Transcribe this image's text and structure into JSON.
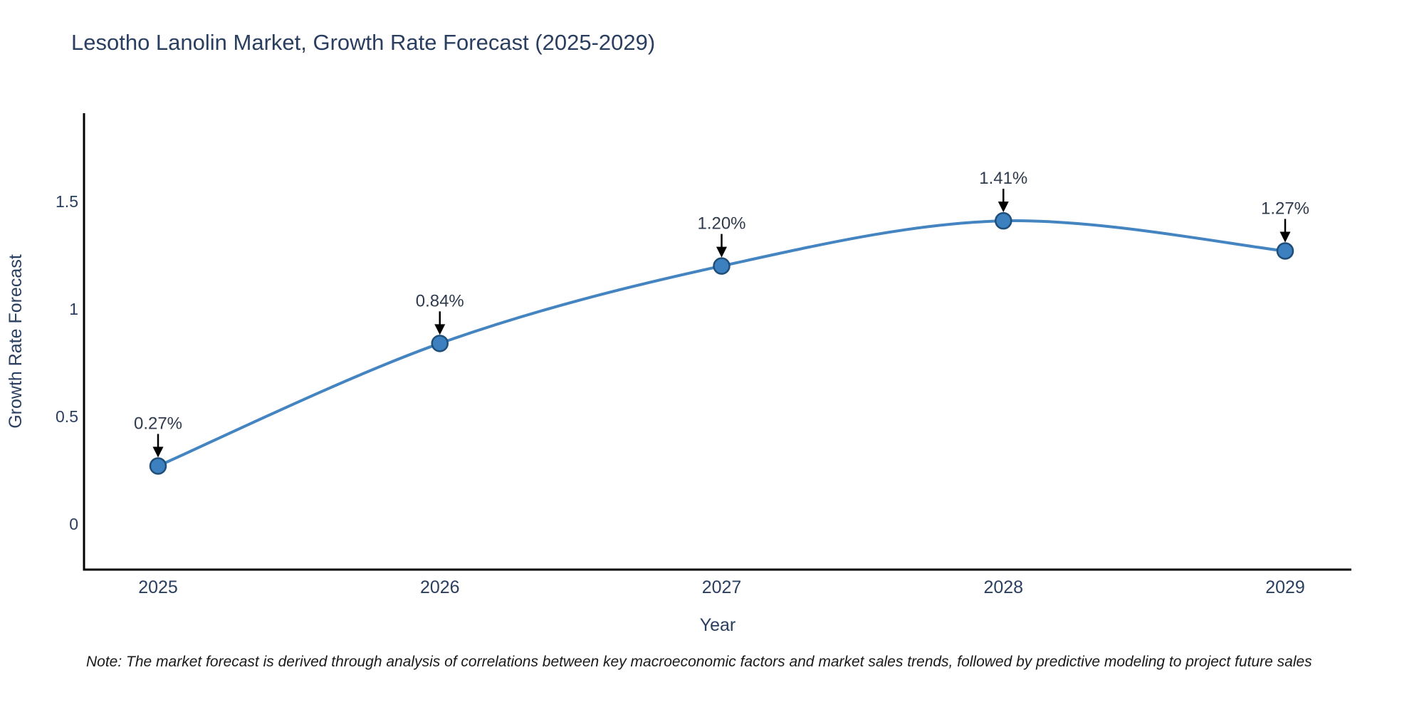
{
  "figure": {
    "title": "Lesotho Lanolin Market, Growth Rate Forecast (2025-2029)",
    "note": "Note: The market forecast is derived through analysis of correlations between key macroeconomic factors and market sales trends, followed by predictive modeling to project future sales"
  },
  "chart_data": {
    "type": "line",
    "title": "Lesotho Lanolin Market, Growth Rate Forecast (2025-2029)",
    "xlabel": "Year",
    "ylabel": "Growth Rate Forecast",
    "categories": [
      "2025",
      "2026",
      "2027",
      "2028",
      "2029"
    ],
    "values": [
      0.27,
      0.84,
      1.2,
      1.41,
      1.27
    ],
    "point_labels": [
      "0.27%",
      "0.84%",
      "1.20%",
      "1.41%",
      "1.27%"
    ],
    "ytick_values": [
      0,
      0.5,
      1,
      1.5
    ],
    "ytick_labels": [
      "0",
      "0.5",
      "1",
      "1.5"
    ],
    "ylim": [
      -0.21,
      1.91
    ],
    "grid": false,
    "legend_position": "none",
    "line_shape": "spline",
    "annotation_style": "down-arrow",
    "colors": {
      "line": "#4384c1",
      "marker_fill": "#3c80bf",
      "marker_edge": "#1f4e79",
      "arrow": "#000000",
      "title_text": "#2a3f5f",
      "axis_title_text": "#2a3f5f",
      "tick_text": "#2a3f5f",
      "annotation_text": "#2f3b4c",
      "note_text": "#1a1a1a",
      "axis_line": "#000000",
      "background": "#ffffff"
    }
  }
}
